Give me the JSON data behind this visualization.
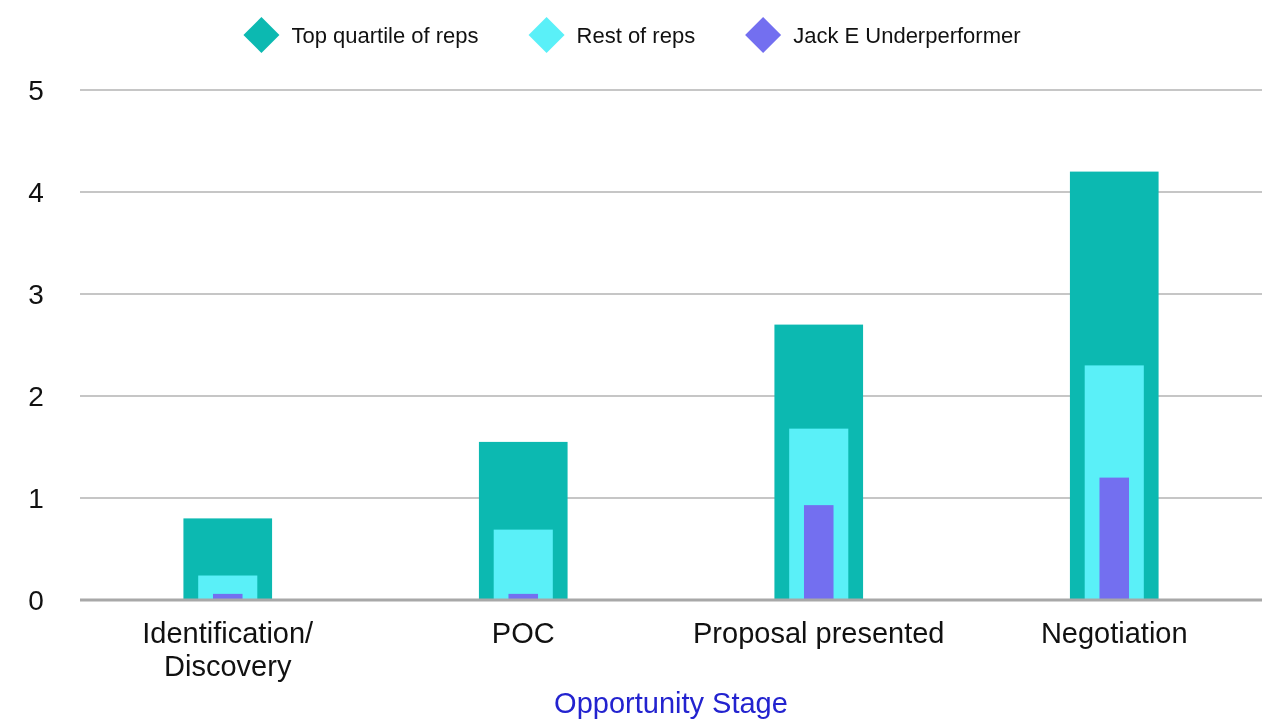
{
  "chart_data": {
    "type": "bar",
    "categories": [
      "Identification/ Discovery",
      "POC",
      "Proposal presented",
      "Negotiation"
    ],
    "series": [
      {
        "name": "Top quartile of reps",
        "color": "#0cb9b1",
        "values": [
          0.8,
          1.55,
          2.7,
          4.2
        ]
      },
      {
        "name": "Rest of reps",
        "color": "#5af0f8",
        "values": [
          0.24,
          0.69,
          1.68,
          2.3
        ]
      },
      {
        "name": "Jack E Underperformer",
        "color": "#736ff0",
        "values": [
          0.06,
          0.06,
          0.93,
          1.2
        ]
      }
    ],
    "xlabel": "Opportunity Stage",
    "ylim": [
      0,
      5
    ],
    "yticks": [
      0,
      1,
      2,
      3,
      4,
      5
    ],
    "grid": "y",
    "legend": "top"
  }
}
